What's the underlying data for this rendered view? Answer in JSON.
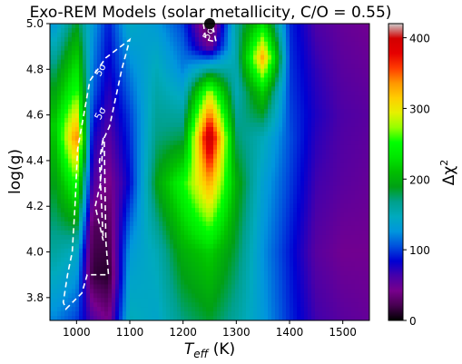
{
  "chart_data": {
    "type": "heatmap",
    "title": "Exo-REM Models (solar metallicity, C/O = 0.55)",
    "xlabel": {
      "main": "T",
      "sub": "eff",
      "suffix": " (K)"
    },
    "ylabel": "log(g)",
    "colorbar_label": {
      "main": "Δχ",
      "sup": "2"
    },
    "xlim": [
      950,
      1550
    ],
    "ylim": [
      3.7,
      5.0
    ],
    "clim": [
      0,
      420
    ],
    "x_ticks": [
      1000,
      1100,
      1200,
      1300,
      1400,
      1500
    ],
    "y_ticks": [
      3.8,
      4.0,
      4.2,
      4.4,
      4.6,
      4.8,
      5.0
    ],
    "colorbar_ticks": [
      0,
      100,
      200,
      300,
      400
    ],
    "colormap": "nipy_spectral",
    "columns": [
      {
        "teff": 960,
        "values": [
          [
            3.7,
            120
          ],
          [
            4.0,
            160
          ],
          [
            4.3,
            190
          ],
          [
            4.55,
            220
          ],
          [
            4.8,
            175
          ],
          [
            5.0,
            130
          ]
        ]
      },
      {
        "teff": 1000,
        "values": [
          [
            3.7,
            100
          ],
          [
            4.0,
            145
          ],
          [
            4.3,
            255
          ],
          [
            4.5,
            345
          ],
          [
            4.7,
            260
          ],
          [
            5.0,
            185
          ]
        ]
      },
      {
        "teff": 1030,
        "values": [
          [
            3.7,
            60
          ],
          [
            3.9,
            15
          ],
          [
            4.1,
            25
          ],
          [
            4.3,
            60
          ],
          [
            4.5,
            80
          ],
          [
            4.7,
            110
          ],
          [
            5.0,
            130
          ]
        ]
      },
      {
        "teff": 1060,
        "values": [
          [
            3.7,
            40
          ],
          [
            3.9,
            10
          ],
          [
            4.2,
            30
          ],
          [
            4.5,
            55
          ],
          [
            4.8,
            80
          ],
          [
            5.0,
            90
          ]
        ]
      },
      {
        "teff": 1100,
        "values": [
          [
            3.7,
            150
          ],
          [
            4.0,
            130
          ],
          [
            4.3,
            85
          ],
          [
            4.6,
            100
          ],
          [
            4.8,
            120
          ],
          [
            5.0,
            145
          ]
        ]
      },
      {
        "teff": 1150,
        "values": [
          [
            3.7,
            140
          ],
          [
            4.0,
            150
          ],
          [
            4.3,
            190
          ],
          [
            4.5,
            170
          ],
          [
            4.8,
            150
          ],
          [
            5.0,
            130
          ]
        ]
      },
      {
        "teff": 1200,
        "values": [
          [
            3.7,
            170
          ],
          [
            4.0,
            200
          ],
          [
            4.3,
            250
          ],
          [
            4.5,
            180
          ],
          [
            4.8,
            120
          ],
          [
            5.0,
            100
          ]
        ]
      },
      {
        "teff": 1250,
        "values": [
          [
            3.7,
            185
          ],
          [
            4.0,
            220
          ],
          [
            4.3,
            330
          ],
          [
            4.5,
            415
          ],
          [
            4.7,
            280
          ],
          [
            4.9,
            45
          ],
          [
            5.0,
            10
          ]
        ]
      },
      {
        "teff": 1300,
        "values": [
          [
            3.7,
            160
          ],
          [
            4.0,
            180
          ],
          [
            4.3,
            200
          ],
          [
            4.5,
            175
          ],
          [
            4.7,
            150
          ],
          [
            5.0,
            160
          ]
        ]
      },
      {
        "teff": 1350,
        "values": [
          [
            3.7,
            130
          ],
          [
            4.0,
            125
          ],
          [
            4.3,
            135
          ],
          [
            4.5,
            150
          ],
          [
            4.7,
            220
          ],
          [
            4.85,
            330
          ],
          [
            5.0,
            230
          ]
        ]
      },
      {
        "teff": 1400,
        "values": [
          [
            3.7,
            95
          ],
          [
            4.0,
            90
          ],
          [
            4.3,
            100
          ],
          [
            4.5,
            105
          ],
          [
            4.7,
            100
          ],
          [
            5.0,
            95
          ]
        ]
      },
      {
        "teff": 1450,
        "values": [
          [
            3.7,
            65
          ],
          [
            4.0,
            55
          ],
          [
            4.3,
            65
          ],
          [
            4.6,
            75
          ],
          [
            4.8,
            70
          ],
          [
            5.0,
            60
          ]
        ]
      },
      {
        "teff": 1500,
        "values": [
          [
            3.7,
            55
          ],
          [
            4.0,
            45
          ],
          [
            4.3,
            55
          ],
          [
            4.6,
            60
          ],
          [
            4.8,
            55
          ],
          [
            5.0,
            50
          ]
        ]
      },
      {
        "teff": 1550,
        "values": [
          [
            3.7,
            50
          ],
          [
            4.0,
            45
          ],
          [
            4.3,
            50
          ],
          [
            4.6,
            55
          ],
          [
            4.8,
            50
          ],
          [
            5.0,
            45
          ]
        ]
      }
    ],
    "contours": [
      {
        "label": "5σ",
        "label_position": [
          1050,
          4.79
        ],
        "points": [
          [
            980,
            3.75
          ],
          [
            1010,
            3.82
          ],
          [
            1020,
            3.9
          ],
          [
            1060,
            3.9
          ],
          [
            1055,
            4.05
          ],
          [
            1052,
            4.5
          ],
          [
            1062,
            4.55
          ],
          [
            1085,
            4.8
          ],
          [
            1100,
            4.93
          ],
          [
            1055,
            4.85
          ],
          [
            1025,
            4.75
          ],
          [
            1002,
            4.45
          ],
          [
            997,
            4.2
          ],
          [
            992,
            4.0
          ],
          [
            983,
            3.9
          ],
          [
            975,
            3.78
          ]
        ]
      },
      {
        "label": "5σ",
        "label_position": [
          1050,
          4.6
        ],
        "points": [
          [
            1050,
            4.5
          ],
          [
            1045,
            4.3
          ],
          [
            1035,
            4.2
          ],
          [
            1050,
            4.05
          ],
          [
            1043,
            4.4
          ],
          [
            1050,
            4.5
          ]
        ]
      },
      {
        "label": "5σ",
        "label_position": [
          1253,
          4.95
        ],
        "points": [
          [
            1238,
            5.0
          ],
          [
            1243,
            4.93
          ],
          [
            1262,
            4.92
          ],
          [
            1255,
            5.0
          ]
        ]
      }
    ],
    "minimum_marker": {
      "teff": 1250,
      "logg": 5.0
    }
  }
}
